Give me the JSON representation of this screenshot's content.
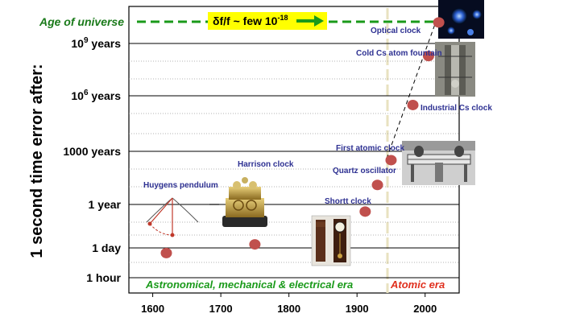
{
  "chart_data": {
    "type": "scatter",
    "title": "",
    "xlabel": "",
    "ylabel": "1 second time error after:",
    "xlim": [
      1565,
      2050
    ],
    "x_ticks": [
      1600,
      1700,
      1800,
      1900,
      2000
    ],
    "y_scale": "log (seconds)",
    "y_ticks": [
      {
        "label": "Age of universe",
        "seconds": 4.35e+17
      },
      {
        "label": "10^9 years",
        "text": "10",
        "sup": "9",
        "suffix": " years",
        "seconds": 3.15e+16
      },
      {
        "label": "10^6 years",
        "text": "10",
        "sup": "6",
        "suffix": " years",
        "seconds": 31500000000000.0
      },
      {
        "label": "1000 years",
        "text": "1000 years",
        "seconds": 31500000000.0
      },
      {
        "label": "1 year",
        "text": "1 year",
        "seconds": 31500000.0
      },
      {
        "label": "1 day",
        "text": "1 day",
        "seconds": 86400
      },
      {
        "label": "1 hour",
        "text": "1 hour",
        "seconds": 3600
      }
    ],
    "grid": "horizontal",
    "point_color": "#c0504d",
    "points": [
      {
        "year": 1620,
        "error_seconds": 50000.0,
        "label": ""
      },
      {
        "year": 1750,
        "error_seconds": 140000.0,
        "label": ""
      },
      {
        "year": 1912,
        "error_seconds": 12000000.0,
        "label": "Shortt clock"
      },
      {
        "year": 1930,
        "error_seconds": 400000000.0,
        "label": "Quartz oscillator"
      },
      {
        "year": 1950,
        "error_seconds": 10000000000.0,
        "label": "First atomic clock"
      },
      {
        "year": 1982,
        "error_seconds": 10000000000000.0,
        "label": "Industrial Cs clock"
      },
      {
        "year": 2005,
        "error_seconds": 6000000000000000.0,
        "label": "Cold Cs atom fountain"
      },
      {
        "year": 2020,
        "error_seconds": 4e+17,
        "label": "Optical clock"
      }
    ],
    "other_labels": [
      "Huygens pendulum",
      "Harrison clock"
    ],
    "target": {
      "label": "δf/f ~ few 10",
      "exponent": "-18",
      "arrow_color": "#1a9a1a",
      "box_color": "#ffff00"
    },
    "eras": [
      {
        "label": "Astronomical, mechanical & electrical era",
        "from": 1565,
        "to": 1950,
        "color": "#1a9a1a"
      },
      {
        "label": "Atomic era",
        "from": 1950,
        "to": 2050,
        "color": "#e0301e"
      }
    ],
    "era_divider_year": 1950
  },
  "colors": {
    "axis": "#000000",
    "grid": "#000000",
    "label_blue": "#2e3192",
    "universe_green": "#1a7a1a"
  }
}
